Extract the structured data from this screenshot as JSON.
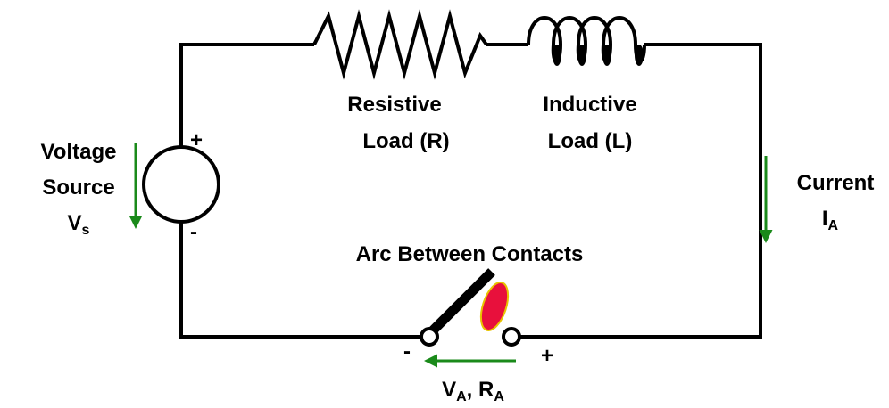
{
  "resistor": {
    "label": [
      "Resistive",
      "Load (R)"
    ]
  },
  "inductor": {
    "label": [
      "Inductive",
      "Load (L)"
    ]
  },
  "source": {
    "label": [
      "Voltage",
      "Source"
    ],
    "symbol": "V",
    "subscript": "s",
    "plus": "+",
    "minus": "-"
  },
  "current": {
    "label": "Current",
    "symbol": "I",
    "subscript": "A"
  },
  "arc": {
    "label": "Arc Between Contacts",
    "minus": "-",
    "plus": "+",
    "symbols": [
      {
        "symbol": "V",
        "subscript": "A"
      },
      {
        "symbol": ", R",
        "subscript": "A"
      }
    ]
  }
}
